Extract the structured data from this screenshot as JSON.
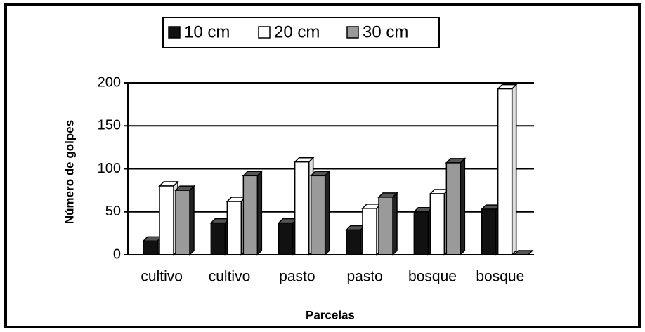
{
  "chart_data": {
    "type": "bar",
    "x_label": "Parcelas",
    "y_label": "Número de golpes",
    "categories": [
      "cultivo",
      "cultivo",
      "pasto",
      "pasto",
      "bosque",
      "bosque"
    ],
    "series": [
      {
        "name": "10 cm",
        "color": "#111111",
        "values": [
          16,
          37,
          37,
          29,
          50,
          53
        ]
      },
      {
        "name": "20 cm",
        "color": "#ffffff",
        "values": [
          80,
          62,
          108,
          54,
          71,
          193
        ]
      },
      {
        "name": "30 cm",
        "color": "#9a9a9a",
        "values": [
          75,
          92,
          92,
          67,
          107,
          0
        ]
      }
    ],
    "ylim": [
      0,
      200
    ],
    "yticks": [
      0,
      50,
      100,
      150,
      200
    ],
    "grid": true
  }
}
